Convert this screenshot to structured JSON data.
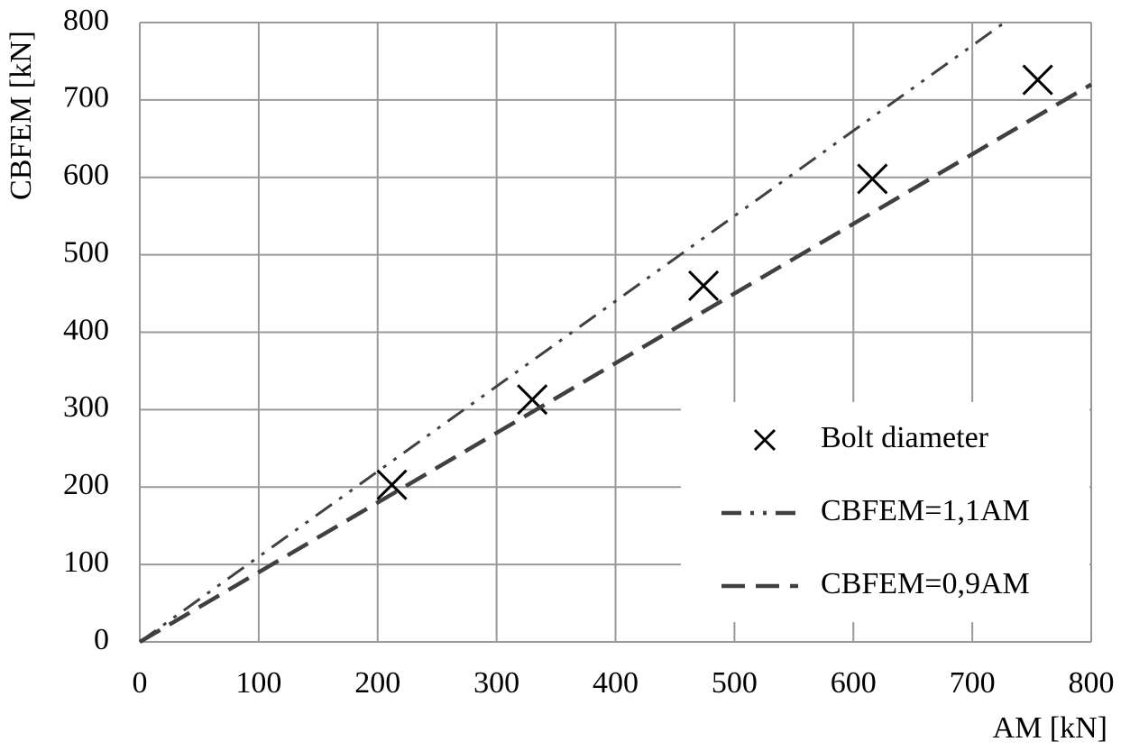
{
  "chart_data": {
    "type": "scatter",
    "xlabel": "AM [kN]",
    "ylabel": "CBFEM [kN]",
    "xlim": [
      0,
      800
    ],
    "xticks": [
      0,
      100,
      200,
      300,
      400,
      500,
      600,
      700,
      800
    ],
    "ylim": [
      0,
      800
    ],
    "yticks": [
      0,
      100,
      200,
      300,
      400,
      500,
      600,
      700,
      800
    ],
    "grid": true,
    "legend": "lower right",
    "series": [
      {
        "name": "Bolt diameter",
        "type": "scatter",
        "color": "#000000",
        "x": [
          212,
          330,
          474,
          616,
          755
        ],
        "values": [
          203,
          313,
          460,
          598,
          726
        ]
      },
      {
        "name": "CBFEM=1,1AM",
        "type": "line",
        "color": "#404040",
        "dash": "dashdot",
        "x": [
          0,
          727
        ],
        "values": [
          0,
          800
        ]
      },
      {
        "name": "CBFEM=0,9AM",
        "type": "line",
        "color": "#404040",
        "dash": "dashed",
        "x": [
          0,
          800
        ],
        "values": [
          0,
          720
        ]
      }
    ]
  }
}
